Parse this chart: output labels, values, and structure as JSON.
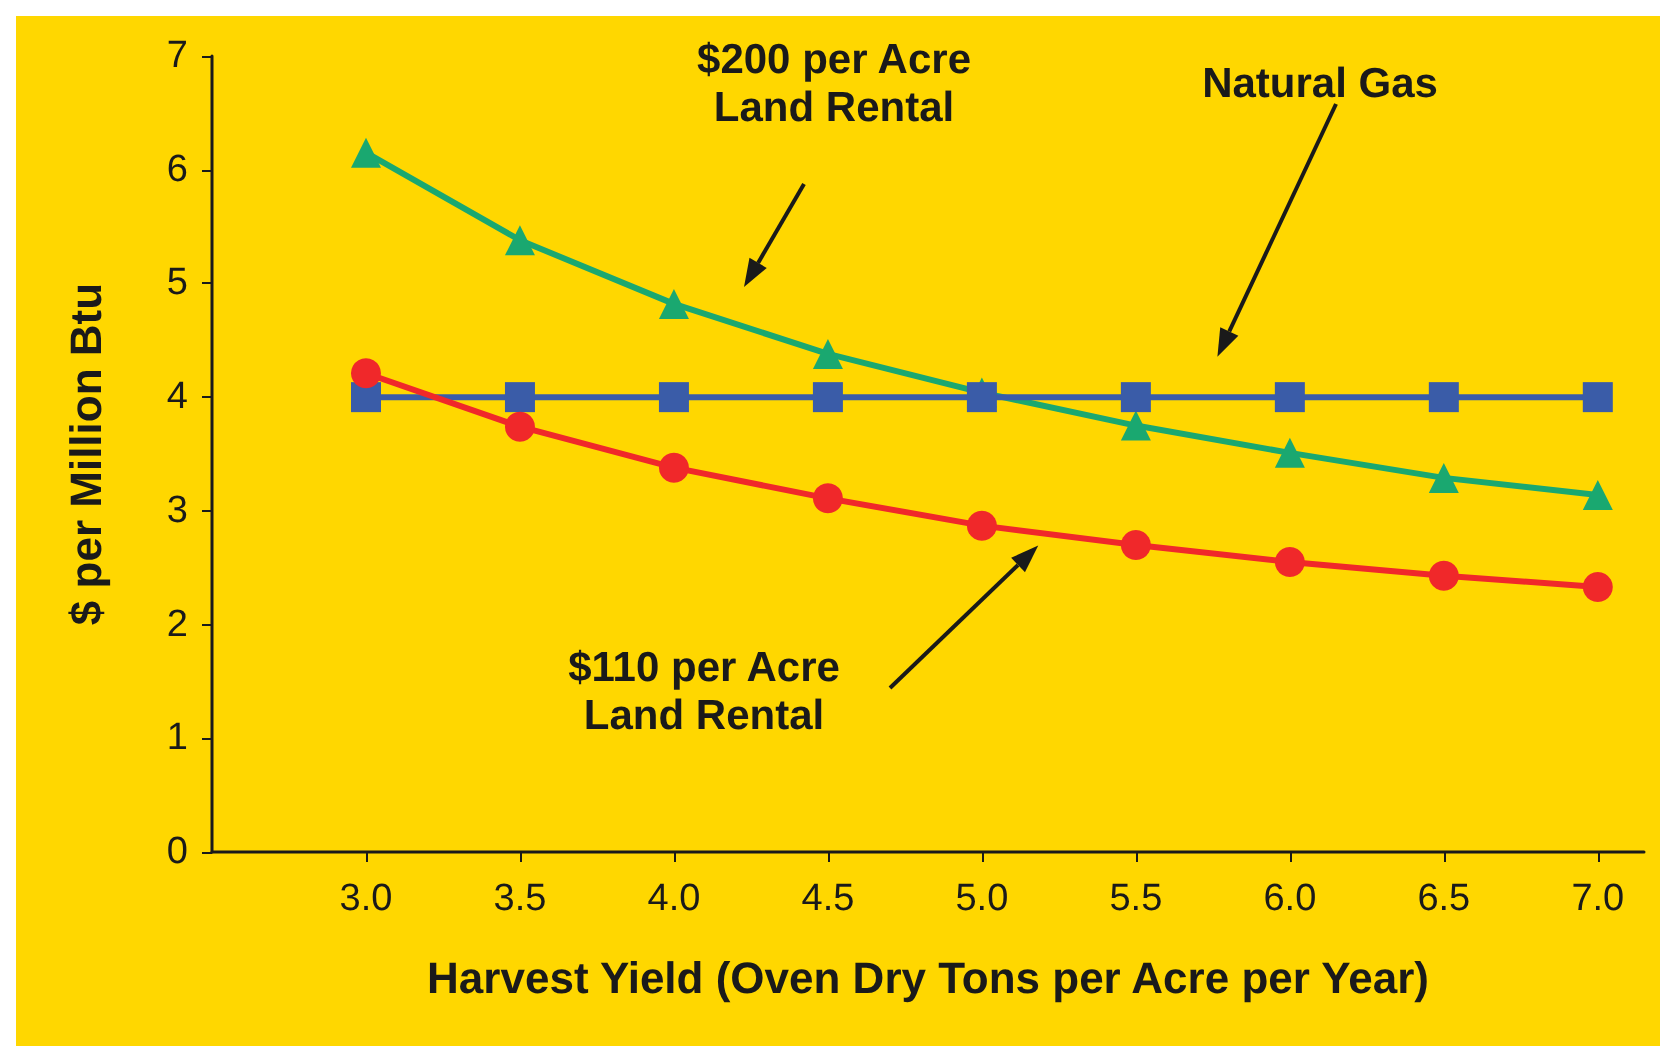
{
  "chart_data": {
    "type": "line",
    "xlabel": "Harvest Yield (Oven Dry Tons per Acre per Year)",
    "ylabel": "$ per Million Btu",
    "x": [
      3.0,
      3.5,
      4.0,
      4.5,
      5.0,
      5.5,
      6.0,
      6.5,
      7.0
    ],
    "series": [
      {
        "color": "#1aa870",
        "marker": "triangle",
        "values": [
          6.15,
          5.38,
          4.82,
          4.38,
          4.04,
          3.75,
          3.51,
          3.29,
          3.14
        ]
      },
      {
        "color": "#3a5ca8",
        "marker": "square",
        "values": [
          4,
          4,
          4,
          4,
          4,
          4,
          4,
          4,
          4
        ]
      },
      {
        "color": "#f0282a",
        "marker": "circle",
        "values": [
          4.21,
          3.74,
          3.38,
          3.11,
          2.87,
          2.7,
          2.55,
          2.43,
          2.33
        ]
      }
    ],
    "xlim": [
      2.5,
      7.15
    ],
    "xticks": [
      {
        "value": 3,
        "label": "3.0"
      },
      {
        "value": 3.5,
        "label": "3.5"
      },
      {
        "value": 4,
        "label": "4.0"
      },
      {
        "value": 4.5,
        "label": "4.5"
      },
      {
        "value": 5,
        "label": "5.0"
      },
      {
        "value": 5.5,
        "label": "5.5"
      },
      {
        "value": 6,
        "label": "6.0"
      },
      {
        "value": 6.5,
        "label": "6.5"
      },
      {
        "value": 7,
        "label": "7.0"
      }
    ],
    "ylim": [
      0,
      7
    ],
    "yticks": [
      0,
      1,
      2,
      3,
      4,
      5,
      6,
      7
    ],
    "annotations": [
      "$200 per Acre\nLand Rental",
      "Natural Gas",
      "$110 per Acre\nLand Rental"
    ],
    "grid": false,
    "line_style": "solid"
  }
}
